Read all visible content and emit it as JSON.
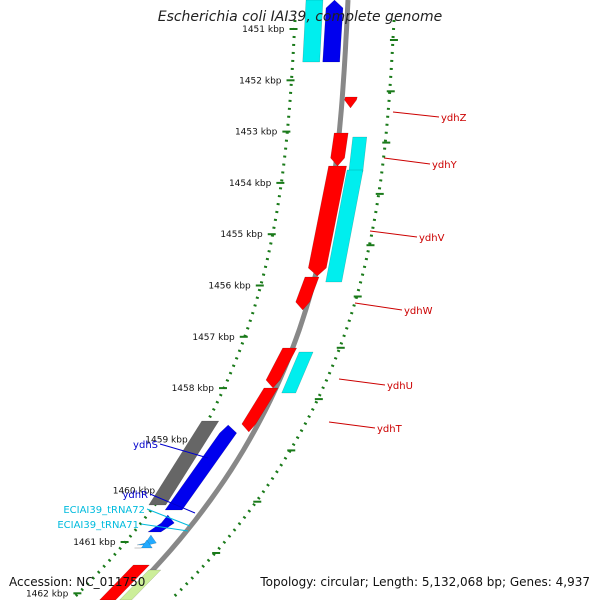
{
  "title": "Escherichia coli IAI39, complete genome",
  "footer": {
    "accession": "Accession: NC_011750",
    "summary": "Topology: circular; Length: 5,132,068 bp; Genes: 4,937"
  },
  "colors": {
    "forward_gene": "#ff0000",
    "cds": "#00eeee",
    "reverse_gene": "#0000ee",
    "pseudo": "#666666",
    "trna": "#22aaff",
    "tick": "#1a7a1a",
    "backbone": "#888888"
  },
  "scale_ticks": [
    "1451 kbp",
    "1452 kbp",
    "1453 kbp",
    "1454 kbp",
    "1455 kbp",
    "1456 kbp",
    "1457 kbp",
    "1458 kbp",
    "1459 kbp",
    "1460 kbp",
    "1461 kbp",
    "1462 kbp"
  ],
  "gene_labels": {
    "right": [
      {
        "name": "ydhZ",
        "color": "#cc0000"
      },
      {
        "name": "ydhY",
        "color": "#cc0000"
      },
      {
        "name": "ydhV",
        "color": "#cc0000"
      },
      {
        "name": "ydhW",
        "color": "#cc0000"
      },
      {
        "name": "ydhU",
        "color": "#cc0000"
      },
      {
        "name": "ydhT",
        "color": "#cc0000"
      }
    ],
    "left": [
      {
        "name": "ydhS",
        "color": "#0000cc"
      },
      {
        "name": "ydhR",
        "color": "#0000cc"
      },
      {
        "name": "ECIAI39_tRNA72",
        "color": "#00bbdd"
      },
      {
        "name": "ECIAI39_tRNA71",
        "color": "#00bbdd"
      }
    ]
  }
}
